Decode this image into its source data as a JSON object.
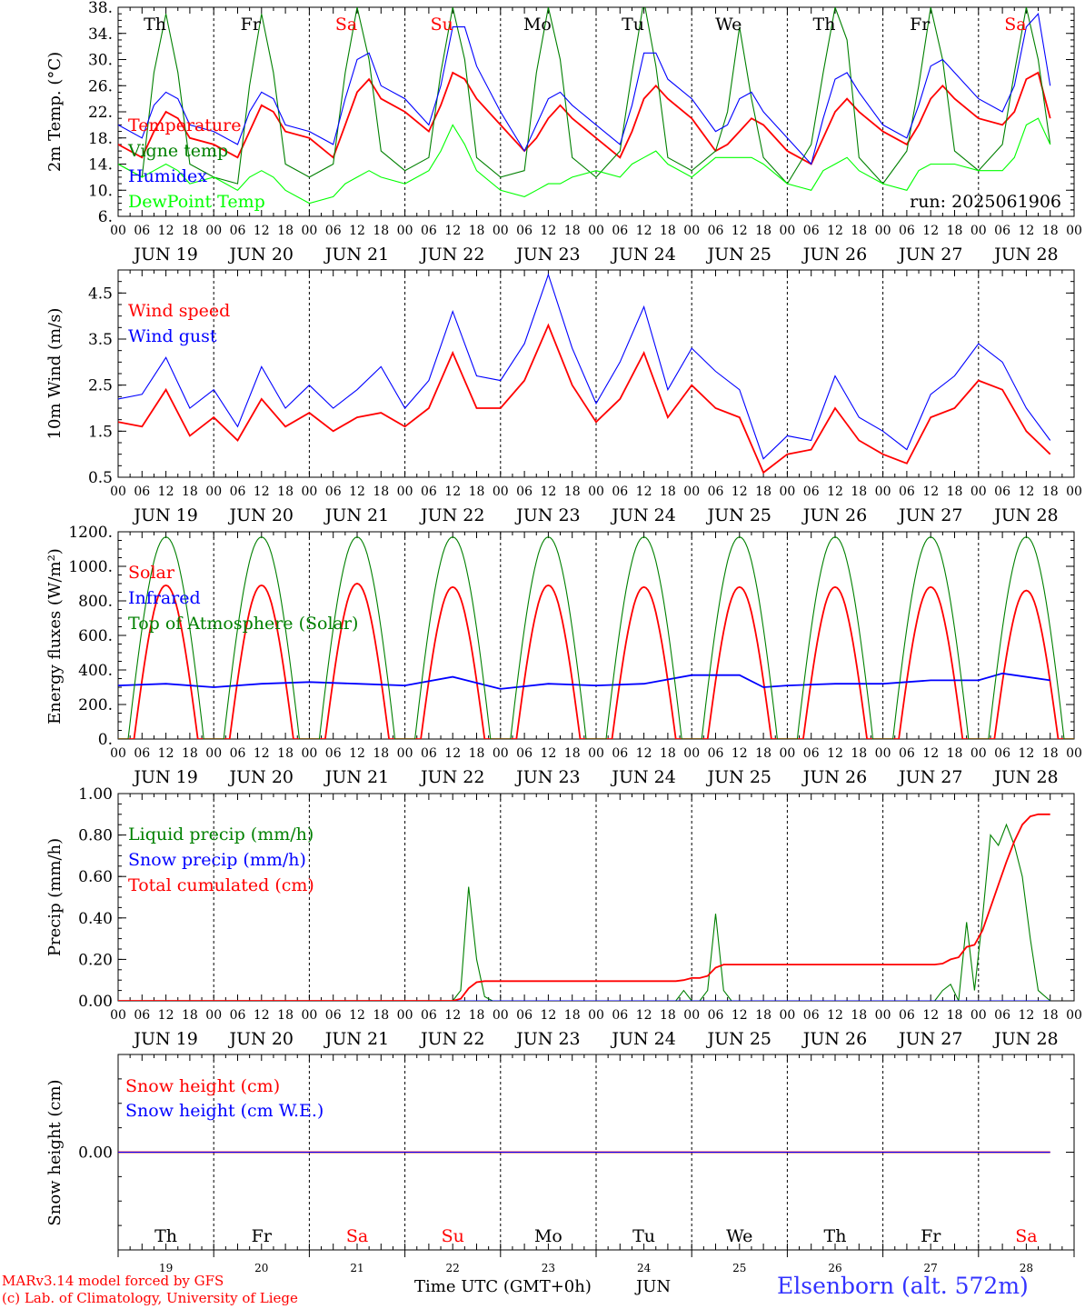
{
  "chart_data": [
    {
      "type": "line",
      "ylabel": "2m Temp. (°C)",
      "ylim": [
        6,
        38
      ],
      "y_ticks": [
        "38.",
        "34.",
        "30.",
        "26.",
        "22.",
        "18.",
        "14.",
        "10.",
        "6."
      ],
      "run_label": "run: 2025061906",
      "series": [
        {
          "name": "Temperature",
          "color": "#ff0000",
          "x": [
            0,
            6,
            9,
            12,
            15,
            18,
            24,
            30,
            33,
            36,
            39,
            42,
            48,
            54,
            57,
            60,
            63,
            66,
            72,
            78,
            81,
            84,
            87,
            90,
            96,
            102,
            105,
            108,
            111,
            114,
            120,
            126,
            129,
            132,
            135,
            138,
            144,
            150,
            153,
            156,
            159,
            162,
            168,
            174,
            177,
            180,
            183,
            186,
            192,
            198,
            201,
            204,
            207,
            210,
            216,
            222,
            225,
            228,
            231,
            234
          ],
          "y": [
            17,
            15,
            19,
            22,
            21,
            18,
            17,
            15,
            19,
            23,
            22,
            19,
            18,
            15,
            20,
            25,
            27,
            24,
            22,
            19,
            23,
            28,
            27,
            24,
            20,
            16,
            18,
            21,
            23,
            21,
            18,
            15,
            19,
            24,
            26,
            24,
            21,
            16,
            17,
            19,
            21,
            20,
            16,
            14,
            18,
            22,
            24,
            22,
            19,
            17,
            20,
            24,
            26,
            24,
            21,
            20,
            22,
            27,
            28,
            21
          ]
        },
        {
          "name": "Vigne temp",
          "color": "#008000",
          "x": [
            0,
            6,
            9,
            12,
            15,
            18,
            24,
            30,
            33,
            36,
            39,
            42,
            48,
            54,
            57,
            60,
            63,
            66,
            72,
            78,
            81,
            84,
            87,
            90,
            96,
            102,
            105,
            108,
            111,
            114,
            120,
            126,
            129,
            132,
            135,
            138,
            144,
            150,
            153,
            156,
            159,
            162,
            168,
            174,
            177,
            180,
            183,
            186,
            192,
            198,
            201,
            204,
            207,
            210,
            216,
            222,
            225,
            228,
            231,
            234
          ],
          "y": [
            14,
            12,
            28,
            37,
            28,
            14,
            12,
            11,
            26,
            37,
            28,
            14,
            12,
            14,
            28,
            38,
            30,
            16,
            13,
            15,
            28,
            38,
            30,
            15,
            12,
            13,
            28,
            38,
            30,
            15,
            12,
            16,
            28,
            39,
            29,
            15,
            13,
            16,
            22,
            35,
            24,
            15,
            11,
            17,
            28,
            38,
            33,
            15,
            11,
            16,
            26,
            38,
            30,
            16,
            13,
            17,
            28,
            38,
            30,
            17
          ]
        },
        {
          "name": "Humidex",
          "color": "#0000ff",
          "x": [
            0,
            6,
            9,
            12,
            15,
            18,
            24,
            30,
            33,
            36,
            39,
            42,
            48,
            54,
            57,
            60,
            63,
            66,
            72,
            78,
            81,
            84,
            87,
            90,
            96,
            102,
            105,
            108,
            111,
            114,
            120,
            126,
            129,
            132,
            135,
            138,
            144,
            150,
            153,
            156,
            159,
            162,
            168,
            174,
            177,
            180,
            183,
            186,
            192,
            198,
            201,
            204,
            207,
            210,
            216,
            222,
            225,
            228,
            231,
            234
          ],
          "y": [
            20,
            18,
            23,
            25,
            24,
            20,
            19,
            17,
            22,
            25,
            24,
            20,
            19,
            17,
            24,
            30,
            31,
            26,
            24,
            20,
            26,
            35,
            35,
            29,
            22,
            16,
            20,
            24,
            25,
            23,
            20,
            17,
            23,
            31,
            31,
            27,
            24,
            19,
            20,
            24,
            25,
            22,
            18,
            14,
            21,
            27,
            28,
            25,
            20,
            18,
            23,
            29,
            30,
            28,
            24,
            22,
            26,
            35,
            37,
            26
          ]
        },
        {
          "name": "DewPoint Temp",
          "color": "#00ff00",
          "x": [
            0,
            6,
            9,
            12,
            15,
            18,
            24,
            30,
            33,
            36,
            39,
            42,
            48,
            54,
            57,
            60,
            63,
            66,
            72,
            78,
            81,
            84,
            87,
            90,
            96,
            102,
            105,
            108,
            111,
            114,
            120,
            126,
            129,
            132,
            135,
            138,
            144,
            150,
            153,
            156,
            159,
            162,
            168,
            174,
            177,
            180,
            183,
            186,
            192,
            198,
            201,
            204,
            207,
            210,
            216,
            222,
            225,
            228,
            231,
            234
          ],
          "y": [
            14,
            12,
            13,
            14,
            13,
            11,
            12,
            10,
            12,
            13,
            12,
            10,
            8,
            9,
            11,
            12,
            13,
            12,
            11,
            13,
            16,
            20,
            17,
            13,
            10,
            9,
            10,
            11,
            11,
            12,
            13,
            12,
            14,
            15,
            16,
            14,
            12,
            15,
            15,
            15,
            15,
            14,
            11,
            10,
            13,
            14,
            15,
            13,
            11,
            10,
            13,
            14,
            14,
            14,
            13,
            13,
            15,
            20,
            21,
            17
          ]
        }
      ]
    },
    {
      "type": "line",
      "ylabel": "10m Wind (m/s)",
      "ylim": [
        0.5,
        5.0
      ],
      "y_ticks": [
        "4.5",
        "3.5",
        "2.5",
        "1.5",
        "0.5"
      ],
      "series": [
        {
          "name": "Wind speed",
          "color": "#ff0000",
          "x": [
            0,
            6,
            12,
            18,
            24,
            30,
            36,
            42,
            48,
            54,
            60,
            66,
            72,
            78,
            84,
            90,
            96,
            102,
            108,
            114,
            120,
            126,
            132,
            138,
            144,
            150,
            156,
            162,
            168,
            174,
            180,
            186,
            192,
            198,
            204,
            210,
            216,
            222,
            228,
            234
          ],
          "y": [
            1.7,
            1.6,
            2.4,
            1.4,
            1.8,
            1.3,
            2.2,
            1.6,
            1.9,
            1.5,
            1.8,
            1.9,
            1.6,
            2.0,
            3.2,
            2.0,
            2.0,
            2.6,
            3.8,
            2.5,
            1.7,
            2.2,
            3.2,
            1.8,
            2.5,
            2.0,
            1.8,
            0.6,
            1.0,
            1.1,
            2.0,
            1.3,
            1.0,
            0.8,
            1.8,
            2.0,
            2.6,
            2.4,
            1.5,
            1.0
          ]
        },
        {
          "name": "Wind gust",
          "color": "#0000ff",
          "x": [
            0,
            6,
            12,
            18,
            24,
            30,
            36,
            42,
            48,
            54,
            60,
            66,
            72,
            78,
            84,
            90,
            96,
            102,
            108,
            114,
            120,
            126,
            132,
            138,
            144,
            150,
            156,
            162,
            168,
            174,
            180,
            186,
            192,
            198,
            204,
            210,
            216,
            222,
            228,
            234
          ],
          "y": [
            2.2,
            2.3,
            3.1,
            2.0,
            2.4,
            1.6,
            2.9,
            2.0,
            2.5,
            2.0,
            2.4,
            2.9,
            2.0,
            2.6,
            4.1,
            2.7,
            2.6,
            3.4,
            4.9,
            3.3,
            2.1,
            3.0,
            4.2,
            2.4,
            3.3,
            2.8,
            2.4,
            0.9,
            1.4,
            1.3,
            2.7,
            1.8,
            1.5,
            1.1,
            2.3,
            2.7,
            3.4,
            3.0,
            2.0,
            1.3
          ]
        }
      ]
    },
    {
      "type": "line",
      "ylabel": "Energy fluxes (W/m²)",
      "ylim": [
        0,
        1200
      ],
      "y_ticks": [
        "1200.",
        "1000.",
        "800.",
        "600.",
        "400.",
        "200.",
        "0."
      ],
      "series": [
        {
          "name": "Solar",
          "color": "#ff0000",
          "peaks": [
            890,
            890,
            900,
            880,
            890,
            880,
            880,
            880,
            880,
            860
          ],
          "x": [
            0,
            6,
            12,
            18,
            24,
            30,
            36,
            42,
            48,
            54,
            60,
            66,
            72,
            78,
            84,
            90,
            96,
            102,
            108,
            114,
            120,
            126,
            132,
            138,
            144,
            150,
            156,
            162,
            168,
            174,
            180,
            186,
            192,
            198,
            204,
            210,
            216,
            222,
            228,
            234
          ]
        },
        {
          "name": "Infrared",
          "color": "#0000ff",
          "x": [
            0,
            12,
            24,
            36,
            48,
            60,
            72,
            84,
            96,
            108,
            120,
            132,
            144,
            150,
            156,
            162,
            168,
            180,
            192,
            204,
            216,
            222,
            234
          ],
          "y": [
            310,
            320,
            300,
            320,
            330,
            320,
            310,
            360,
            290,
            320,
            310,
            320,
            370,
            370,
            370,
            300,
            310,
            320,
            320,
            340,
            340,
            380,
            340
          ]
        },
        {
          "name": "Top of Atmosphere (Solar)",
          "color": "#008000",
          "peak": 1170
        }
      ]
    },
    {
      "type": "line",
      "ylabel": "Precip (mm/h)",
      "ylim": [
        0,
        1
      ],
      "y_ticks": [
        "1.00",
        "0.80",
        "0.60",
        "0.40",
        "0.20",
        "0.00"
      ],
      "series": [
        {
          "name": "Liquid precip (mm/h)",
          "color": "#008000",
          "x": [
            0,
            84,
            86,
            88,
            90,
            92,
            94,
            140,
            142,
            144,
            146,
            148,
            150,
            152,
            154,
            205,
            207,
            209,
            211,
            213,
            215,
            217,
            219,
            221,
            223,
            225,
            227,
            229,
            231,
            234
          ],
          "y": [
            0,
            0,
            0.05,
            0.55,
            0.2,
            0.02,
            0,
            0,
            0.05,
            0,
            0,
            0.05,
            0.42,
            0.05,
            0,
            0,
            0.05,
            0.08,
            0,
            0.38,
            0.05,
            0.4,
            0.8,
            0.75,
            0.85,
            0.75,
            0.6,
            0.3,
            0.05,
            0
          ]
        },
        {
          "name": "Snow precip (mm/h)",
          "color": "#0000ff",
          "x": [
            0,
            234
          ],
          "y": [
            0,
            0
          ]
        },
        {
          "name": "Total cumulated (cm)",
          "color": "#ff0000",
          "x": [
            0,
            84,
            86,
            88,
            90,
            92,
            94,
            140,
            142,
            144,
            146,
            148,
            150,
            152,
            154,
            205,
            207,
            209,
            211,
            213,
            215,
            217,
            219,
            221,
            223,
            225,
            227,
            229,
            231,
            234
          ],
          "y": [
            0,
            0,
            0.01,
            0.06,
            0.09,
            0.095,
            0.095,
            0.095,
            0.1,
            0.11,
            0.11,
            0.12,
            0.16,
            0.175,
            0.175,
            0.175,
            0.18,
            0.2,
            0.21,
            0.26,
            0.27,
            0.34,
            0.45,
            0.56,
            0.67,
            0.77,
            0.85,
            0.89,
            0.9,
            0.9
          ]
        }
      ]
    },
    {
      "type": "line",
      "ylabel": "Snow height (cm)",
      "y_ticks": [
        "0.00"
      ],
      "series": [
        {
          "name": "Snow height (cm)",
          "color": "#ff0000",
          "x": [
            0,
            234
          ],
          "y": [
            0,
            0
          ]
        },
        {
          "name": "Snow height (cm W.E.)",
          "color": "#0000ff",
          "x": [
            0,
            234
          ],
          "y": [
            0,
            0
          ]
        }
      ]
    }
  ],
  "x_axis": {
    "hour_labels": [
      "00",
      "06",
      "12",
      "18"
    ],
    "final_label": "00",
    "date_labels": [
      "JUN 19",
      "JUN 20",
      "JUN 21",
      "JUN 22",
      "JUN 23",
      "JUN 24",
      "JUN 25",
      "JUN 26",
      "JUN 27",
      "JUN 28"
    ],
    "weekdays": [
      "Th",
      "Fr",
      "Sa",
      "Su",
      "Mo",
      "Tu",
      "We",
      "Th",
      "Fr",
      "Sa"
    ],
    "weekend_color": "#ff0000",
    "day_numbers": [
      "19",
      "20",
      "21",
      "22",
      "23",
      "24",
      "25",
      "26",
      "27",
      "28"
    ]
  },
  "footer": {
    "credit_line1": "MARv3.14 model forced by GFS",
    "credit_line2": "(c) Lab. of Climatology, University of Liege",
    "axis_title": "Time UTC (GMT+0h)",
    "month": "JUN",
    "station": "Elsenborn (alt. 572m)"
  }
}
